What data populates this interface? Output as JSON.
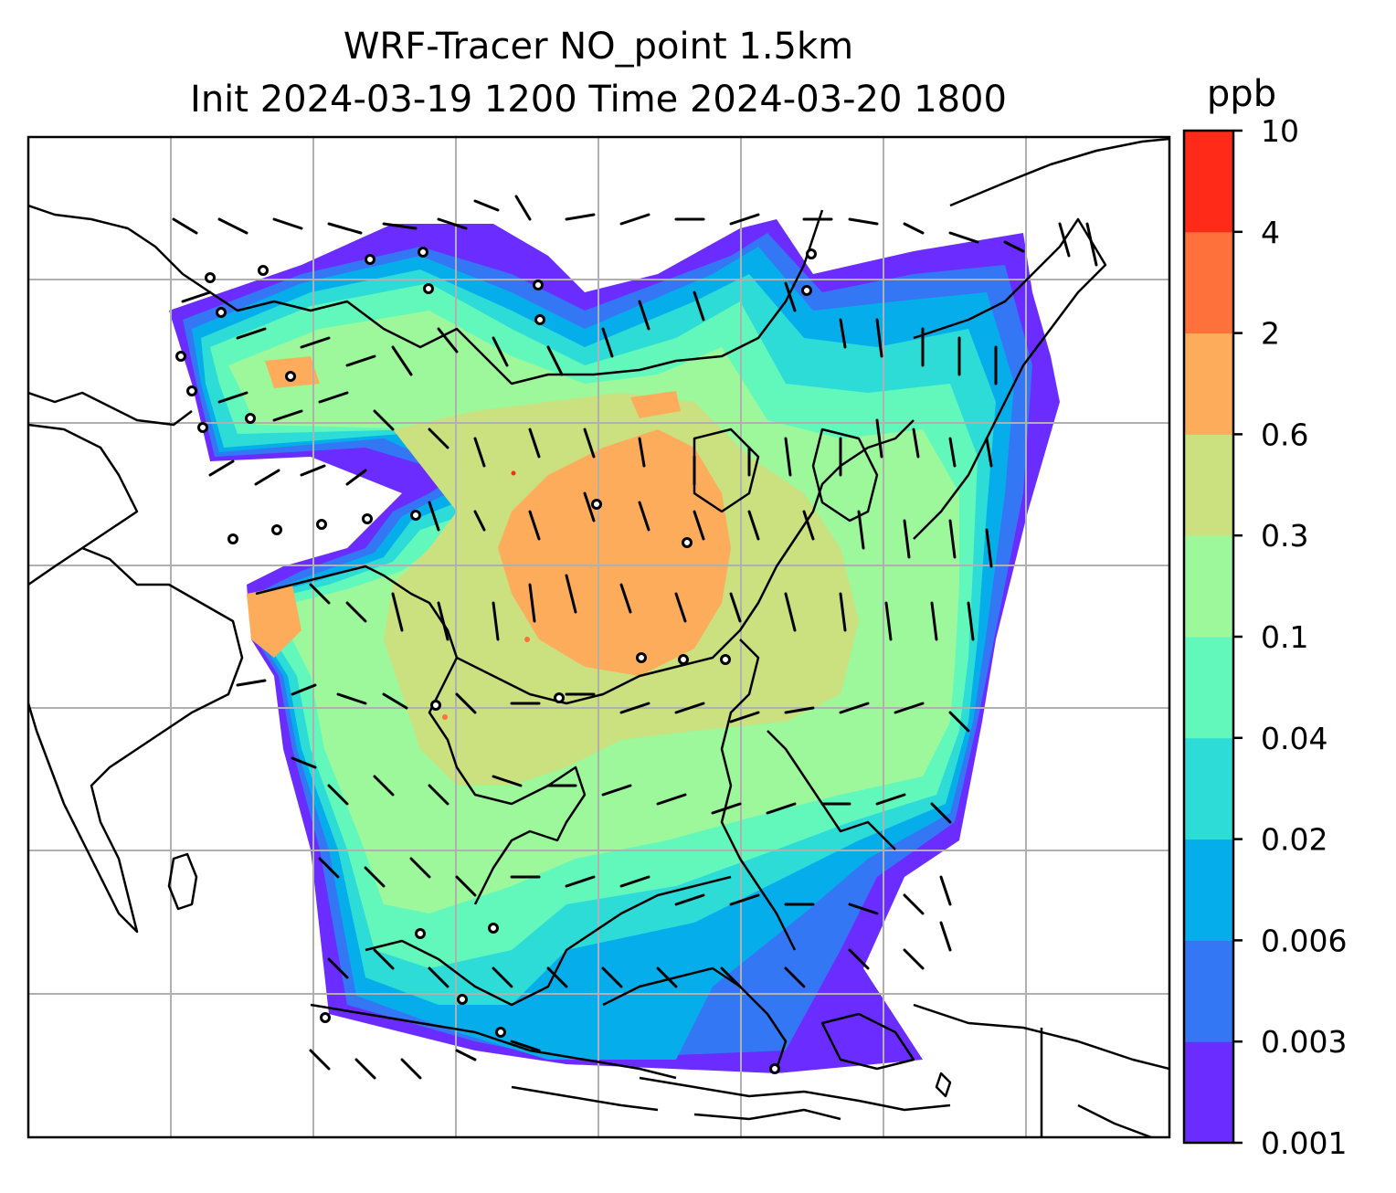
{
  "title": {
    "line1": "WRF-Tracer NO_point 1.5km",
    "line2": "Init 2024-03-19 1200 Time 2024-03-20 1800"
  },
  "colorbar": {
    "unit": "ppb",
    "levels": [
      "0.001",
      "0.003",
      "0.006",
      "0.02",
      "0.04",
      "0.1",
      "0.3",
      "0.6",
      "2",
      "4",
      "10"
    ],
    "colors": [
      "#6a2cff",
      "#3477f5",
      "#05aeea",
      "#2ddcd6",
      "#62f8bc",
      "#9cf89b",
      "#cbe07f",
      "#fdac5c",
      "#ff713a",
      "#ff2a17"
    ]
  },
  "map": {
    "gridlines": true,
    "overlay": "wind barbs",
    "basemap": "coastlines"
  }
}
